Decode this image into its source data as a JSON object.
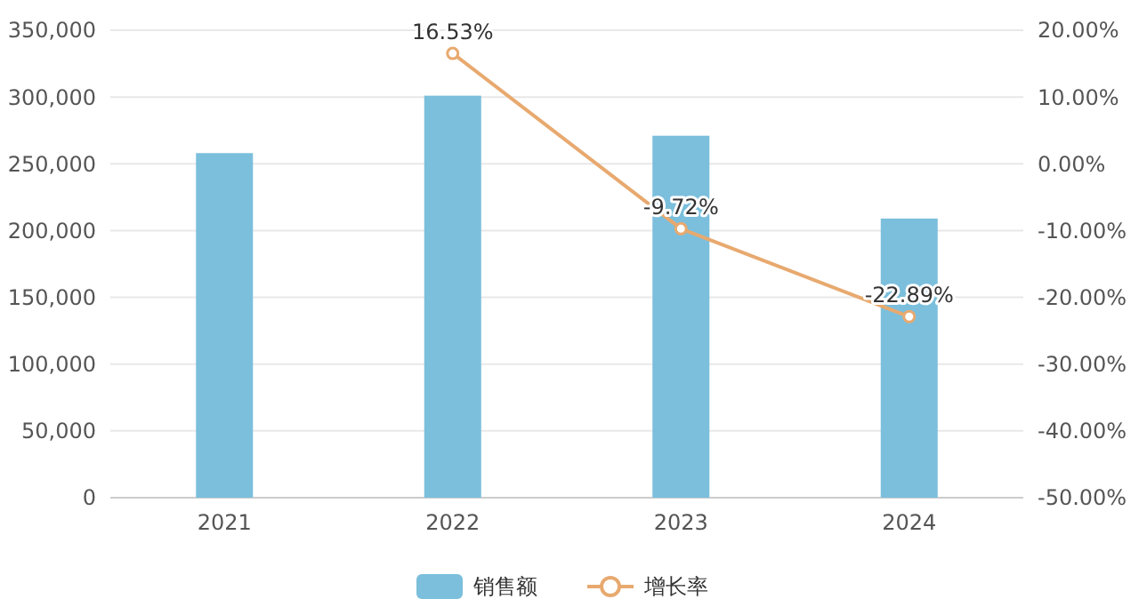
{
  "chart_data": {
    "type": "bar",
    "categories": [
      "2021",
      "2022",
      "2023",
      "2024"
    ],
    "series": [
      {
        "name": "销售额",
        "color": "#7bbfdc",
        "values": [
          258000,
          301000,
          271000,
          209000
        ]
      },
      {
        "name": "增长率",
        "type": "line",
        "axis": "y2",
        "color": "#e8a96f",
        "values": [
          null,
          16.53,
          -9.72,
          -22.89
        ],
        "value_labels": [
          null,
          "16.53%",
          "-9.72%",
          "-22.89%"
        ]
      }
    ],
    "ylim": [
      0,
      350000
    ],
    "yticks": [
      0,
      {
        "value": 50000,
        "label": "50,000"
      },
      {
        "value": 100000,
        "label": "100,000"
      },
      {
        "value": 150000,
        "label": "150,000"
      },
      {
        "value": 200000,
        "label": "200,000"
      },
      {
        "value": 250000,
        "label": "250,000"
      },
      {
        "value": 300000,
        "label": "300,000"
      },
      {
        "value": 350000,
        "label": "350,000"
      }
    ],
    "y2lim": [
      -50,
      20
    ],
    "y2ticks": [
      {
        "value": -50,
        "label": "-50.00%"
      },
      {
        "value": -40,
        "label": "-40.00%"
      },
      {
        "value": -30,
        "label": "-30.00%"
      },
      {
        "value": -20,
        "label": "-20.00%"
      },
      {
        "value": -10,
        "label": "-10.00%"
      },
      {
        "value": 0,
        "label": "0.00%"
      },
      {
        "value": 10,
        "label": "10.00%"
      },
      {
        "value": 20,
        "label": "20.00%"
      }
    ],
    "grid": "y",
    "legend": "bottom",
    "marker": "circle",
    "line_style": "solid"
  }
}
